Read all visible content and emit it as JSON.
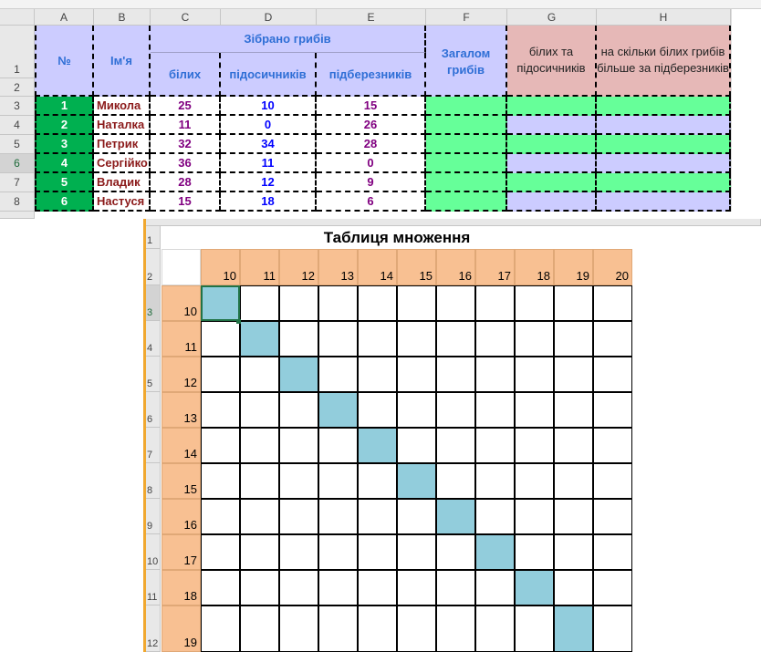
{
  "sheet1": {
    "col_headers": [
      "A",
      "B",
      "C",
      "D",
      "E",
      "F",
      "G",
      "H"
    ],
    "row_headers": [
      "1",
      "2",
      "3",
      "4",
      "5",
      "6",
      "7",
      "8"
    ],
    "headers": {
      "number": "№",
      "name": "Ім'я",
      "collected": "Зібрано грибів",
      "white": "білих",
      "podosynovyk": "підосичників",
      "pidberezovyk": "підберезників",
      "total": "Загалом грибів",
      "white_and_pod": "білих та підосичників",
      "how_many_more": "на скільки білих грибів більше за підберезників"
    },
    "rows": [
      {
        "n": "1",
        "name": "Микола",
        "white": "25",
        "pod": "10",
        "pid": "15"
      },
      {
        "n": "2",
        "name": "Наталка",
        "white": "11",
        "pod": "0",
        "pid": "26"
      },
      {
        "n": "3",
        "name": "Петрик",
        "white": "32",
        "pod": "34",
        "pid": "28"
      },
      {
        "n": "4",
        "name": "Сергійко",
        "white": "36",
        "pod": "11",
        "pid": "0"
      },
      {
        "n": "5",
        "name": "Владик",
        "white": "28",
        "pod": "12",
        "pid": "9"
      },
      {
        "n": "6",
        "name": "Настуся",
        "white": "15",
        "pod": "18",
        "pid": "6"
      }
    ],
    "colors": {
      "header_blue": "#ccccff",
      "header_pink": "#e6b8b7",
      "green_num": "#00b050",
      "green_light": "#66ff99",
      "lavender": "#ccccff",
      "name_color": "#8b1a1a",
      "white_color": "#800080",
      "pod_color": "#0000ff",
      "pid_color": "#800080"
    }
  },
  "sheet2": {
    "title": "Таблиця множення",
    "col_values": [
      "10",
      "11",
      "12",
      "13",
      "14",
      "15",
      "16",
      "17",
      "18",
      "19",
      "20"
    ],
    "row_values": [
      "10",
      "11",
      "12",
      "13",
      "14",
      "15",
      "16",
      "17",
      "18",
      "19"
    ],
    "row_headers": [
      "1",
      "2",
      "3",
      "4",
      "5",
      "6",
      "7",
      "8",
      "9",
      "10",
      "11",
      "12"
    ],
    "colors": {
      "peach": "#f8c092",
      "diag": "#92cddc",
      "accent": "#f0a830"
    }
  }
}
